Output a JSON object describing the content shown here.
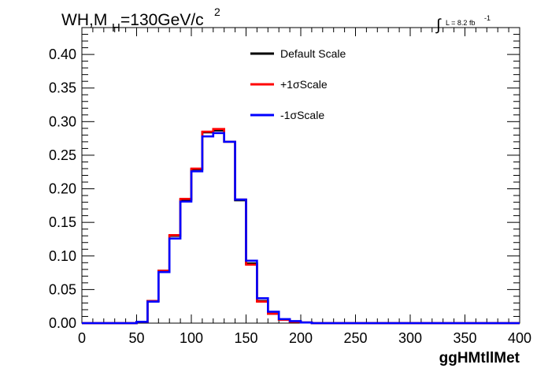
{
  "chart_data": {
    "type": "line",
    "title_main": "WH,M",
    "title_sub": "H",
    "title_rest": "=130GeV/c",
    "title_sup": "2",
    "lumi_label": "L = 8.2 fb",
    "lumi_sup": "-1",
    "xlabel": "ggHMtllMet",
    "ylabel": "",
    "xlim": [
      0,
      400
    ],
    "ylim": [
      0,
      0.44
    ],
    "xticks": [
      "0",
      "50",
      "100",
      "150",
      "200",
      "250",
      "300",
      "350",
      "400"
    ],
    "yticks": [
      "0.00",
      "0.05",
      "0.10",
      "0.15",
      "0.20",
      "0.25",
      "0.30",
      "0.35",
      "0.40"
    ],
    "bin_edges": [
      0,
      10,
      20,
      30,
      40,
      50,
      60,
      70,
      80,
      90,
      100,
      110,
      120,
      130,
      140,
      150,
      160,
      170,
      180,
      190,
      200,
      210,
      400
    ],
    "series": [
      {
        "name": "Default Scale",
        "color": "#000000",
        "values": [
          0,
          0,
          0,
          0,
          0,
          0.002,
          0.033,
          0.078,
          0.13,
          0.184,
          0.229,
          0.284,
          0.287,
          0.27,
          0.183,
          0.089,
          0.033,
          0.014,
          0.005,
          0.002,
          0.001,
          0
        ]
      },
      {
        "name": "+1σScale",
        "color": "#ff0000",
        "values": [
          0,
          0,
          0,
          0,
          0,
          0.002,
          0.033,
          0.078,
          0.131,
          0.185,
          0.23,
          0.285,
          0.289,
          0.27,
          0.184,
          0.087,
          0.032,
          0.014,
          0.005,
          0.002,
          0.001,
          0
        ]
      },
      {
        "name": "-1σScale",
        "color": "#0000ff",
        "values": [
          0,
          0,
          0,
          0,
          0,
          0.002,
          0.032,
          0.076,
          0.126,
          0.181,
          0.226,
          0.278,
          0.283,
          0.27,
          0.184,
          0.093,
          0.037,
          0.017,
          0.006,
          0.003,
          0.001,
          0
        ]
      }
    ],
    "legend_position": "top-center"
  }
}
